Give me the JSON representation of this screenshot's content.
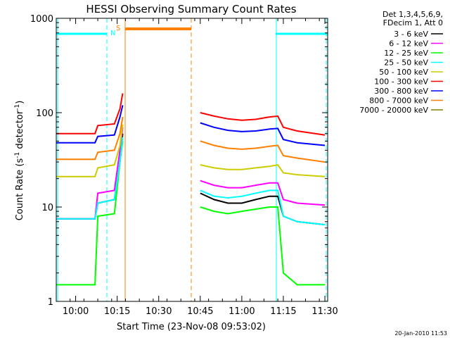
{
  "chart_data": {
    "type": "line",
    "title": "HESSI Observing Summary Count Rates",
    "xlabel": "Start Time (23-Nov-08 09:53:02)",
    "ylabel_prefix": "Count Rate (s",
    "ylabel_mid": " detector",
    "ylabel_suffix": ")",
    "ylabel_exp": "-1",
    "y_scale": "log",
    "ylim": [
      1,
      1000
    ],
    "xlim_minutes": [
      "09:53",
      "11:31"
    ],
    "x_ticks": [
      {
        "t": "10:00"
      },
      {
        "t": "10:15"
      },
      {
        "t": "10:30"
      },
      {
        "t": "10:45"
      },
      {
        "t": "11:00"
      },
      {
        "t": "11:15"
      },
      {
        "t": "11:30"
      }
    ],
    "y_ticks": [
      {
        "v": 1,
        "label": "1"
      },
      {
        "v": 10,
        "label": "10"
      },
      {
        "v": 100,
        "label": "100"
      },
      {
        "v": 1000,
        "label": "1000"
      }
    ],
    "legend_header": [
      "Det 1,3,4,5,6,9,",
      "FDecim 1, Att 0"
    ],
    "legend_placement": "right",
    "series": [
      {
        "name": "3 - 6 keV",
        "color": "#000000",
        "points": [
          [
            "09:53",
            7.5
          ],
          [
            "10:07",
            7.5
          ],
          [
            "10:08",
            11
          ],
          [
            "10:14",
            12
          ],
          [
            "10:16",
            30
          ],
          [
            "10:17",
            60
          ],
          [
            "10:42",
            null
          ],
          [
            "10:45",
            14
          ],
          [
            "10:50",
            12
          ],
          [
            "10:55",
            11
          ],
          [
            "11:00",
            11
          ],
          [
            "11:05",
            12
          ],
          [
            "11:10",
            13
          ],
          [
            "11:13",
            13
          ],
          [
            "11:15",
            8
          ],
          [
            "11:20",
            7
          ],
          [
            "11:30",
            6.5
          ]
        ]
      },
      {
        "name": "6 - 12 keV",
        "color": "#ff00ff",
        "points": [
          [
            "09:53",
            7.5
          ],
          [
            "10:07",
            7.5
          ],
          [
            "10:08",
            14
          ],
          [
            "10:14",
            15
          ],
          [
            "10:16",
            40
          ],
          [
            "10:17",
            70
          ],
          [
            "10:42",
            null
          ],
          [
            "10:45",
            19
          ],
          [
            "10:50",
            17
          ],
          [
            "10:55",
            16
          ],
          [
            "11:00",
            16
          ],
          [
            "11:05",
            17
          ],
          [
            "11:10",
            18
          ],
          [
            "11:13",
            18
          ],
          [
            "11:15",
            12
          ],
          [
            "11:20",
            11
          ],
          [
            "11:30",
            10.5
          ]
        ]
      },
      {
        "name": "12 - 25 keV",
        "color": "#00ff00",
        "points": [
          [
            "09:53",
            1.5
          ],
          [
            "10:07",
            1.5
          ],
          [
            "10:08",
            8
          ],
          [
            "10:14",
            8.5
          ],
          [
            "10:16",
            30
          ],
          [
            "10:17",
            50
          ],
          [
            "10:42",
            null
          ],
          [
            "10:45",
            10
          ],
          [
            "10:50",
            9
          ],
          [
            "10:55",
            8.5
          ],
          [
            "11:00",
            9
          ],
          [
            "11:05",
            9.5
          ],
          [
            "11:10",
            10
          ],
          [
            "11:13",
            10
          ],
          [
            "11:15",
            2
          ],
          [
            "11:20",
            1.5
          ],
          [
            "11:30",
            1.5
          ]
        ]
      },
      {
        "name": "25 - 50 keV",
        "color": "#00ffff",
        "points": [
          [
            "09:53",
            7.5
          ],
          [
            "10:07",
            7.5
          ],
          [
            "10:08",
            11
          ],
          [
            "10:14",
            12
          ],
          [
            "10:16",
            30
          ],
          [
            "10:17",
            55
          ],
          [
            "10:42",
            null
          ],
          [
            "10:45",
            15
          ],
          [
            "10:50",
            13
          ],
          [
            "10:55",
            12.5
          ],
          [
            "11:00",
            13
          ],
          [
            "11:05",
            14
          ],
          [
            "11:10",
            15
          ],
          [
            "11:13",
            15
          ],
          [
            "11:15",
            8
          ],
          [
            "11:20",
            7
          ],
          [
            "11:30",
            6.5
          ]
        ]
      },
      {
        "name": "50 - 100 keV",
        "color": "#cccc00",
        "points": [
          [
            "09:53",
            21
          ],
          [
            "10:07",
            21
          ],
          [
            "10:08",
            26
          ],
          [
            "10:14",
            28
          ],
          [
            "10:16",
            45
          ],
          [
            "10:17",
            75
          ],
          [
            "10:42",
            null
          ],
          [
            "10:45",
            28
          ],
          [
            "10:50",
            26
          ],
          [
            "10:55",
            25
          ],
          [
            "11:00",
            25
          ],
          [
            "11:05",
            26
          ],
          [
            "11:10",
            27
          ],
          [
            "11:13",
            28
          ],
          [
            "11:15",
            23
          ],
          [
            "11:20",
            22
          ],
          [
            "11:30",
            21
          ]
        ]
      },
      {
        "name": "100 - 300 keV",
        "color": "#ff0000",
        "points": [
          [
            "09:53",
            60
          ],
          [
            "10:07",
            60
          ],
          [
            "10:08",
            73
          ],
          [
            "10:14",
            76
          ],
          [
            "10:16",
            110
          ],
          [
            "10:17",
            160
          ],
          [
            "10:42",
            null
          ],
          [
            "10:45",
            100
          ],
          [
            "10:50",
            92
          ],
          [
            "10:55",
            86
          ],
          [
            "11:00",
            83
          ],
          [
            "11:05",
            85
          ],
          [
            "11:10",
            90
          ],
          [
            "11:13",
            92
          ],
          [
            "11:15",
            70
          ],
          [
            "11:20",
            64
          ],
          [
            "11:30",
            58
          ]
        ]
      },
      {
        "name": "300 - 800 keV",
        "color": "#0000ff",
        "points": [
          [
            "09:53",
            48
          ],
          [
            "10:07",
            48
          ],
          [
            "10:08",
            56
          ],
          [
            "10:14",
            58
          ],
          [
            "10:16",
            90
          ],
          [
            "10:17",
            120
          ],
          [
            "10:42",
            null
          ],
          [
            "10:45",
            78
          ],
          [
            "10:50",
            70
          ],
          [
            "10:55",
            65
          ],
          [
            "11:00",
            63
          ],
          [
            "11:05",
            64
          ],
          [
            "11:10",
            67
          ],
          [
            "11:13",
            68
          ],
          [
            "11:15",
            52
          ],
          [
            "11:20",
            48
          ],
          [
            "11:30",
            45
          ]
        ]
      },
      {
        "name": "800 - 7000 keV",
        "color": "#ff8000",
        "points": [
          [
            "09:53",
            32
          ],
          [
            "10:07",
            32
          ],
          [
            "10:08",
            38
          ],
          [
            "10:14",
            40
          ],
          [
            "10:16",
            60
          ],
          [
            "10:17",
            90
          ],
          [
            "10:42",
            null
          ],
          [
            "10:45",
            50
          ],
          [
            "10:50",
            45
          ],
          [
            "10:55",
            42
          ],
          [
            "11:00",
            41
          ],
          [
            "11:05",
            42
          ],
          [
            "11:10",
            44
          ],
          [
            "11:13",
            45
          ],
          [
            "11:15",
            35
          ],
          [
            "11:20",
            33
          ],
          [
            "11:30",
            30
          ]
        ]
      },
      {
        "name": "7000 - 20000 keV",
        "color": "#8b7d00",
        "points": []
      }
    ],
    "markers": [
      {
        "label": "N",
        "color": "#00ffff"
      },
      {
        "label": "S",
        "color": "#ff8000"
      }
    ],
    "timestamp": "20-Jan-2010 11:53"
  }
}
